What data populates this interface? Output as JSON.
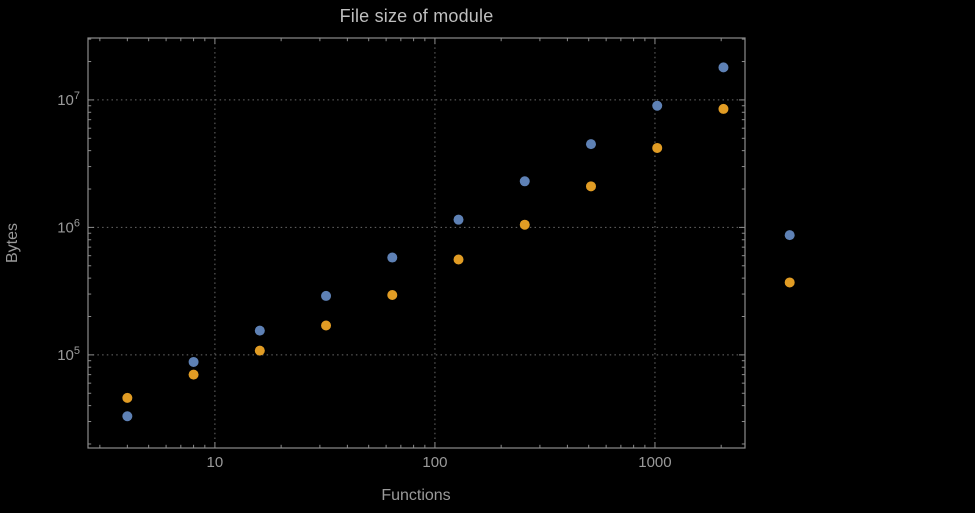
{
  "chart_data": {
    "type": "scatter",
    "title": "File size of module",
    "xlabel": "Functions",
    "ylabel": "Bytes",
    "x_scale": "log",
    "y_scale": "log",
    "xlim": [
      2.65,
      2566
    ],
    "ylim": [
      18600,
      30600000
    ],
    "x_ticks": [
      "10",
      "100",
      "1000"
    ],
    "x_tick_values": [
      10,
      100,
      1000
    ],
    "y_tick_exponents": [
      5,
      6,
      7
    ],
    "grid": "dotted-major-only",
    "legend": "none",
    "x": [
      4,
      8,
      16,
      32,
      64,
      128,
      256,
      512,
      1024,
      2048,
      4096
    ],
    "series": [
      {
        "name": "series-1-blue",
        "color": "#5e81b5",
        "values": [
          33000,
          88000,
          155000,
          290000,
          580000,
          1150000,
          2300000,
          4500000,
          9000000,
          18000000,
          870000
        ]
      },
      {
        "name": "series-2-orange",
        "color": "#e19c24",
        "values": [
          46000,
          70000,
          108000,
          170000,
          295000,
          560000,
          1050000,
          2100000,
          4200000,
          8500000,
          370000
        ]
      }
    ],
    "colors": {
      "background": "#000000",
      "frame": "#8c8c8c",
      "grid": "#696969",
      "tick_label": "#9a9a9a",
      "axis_label": "#9a9a9a",
      "title": "#bfbfbf"
    }
  }
}
